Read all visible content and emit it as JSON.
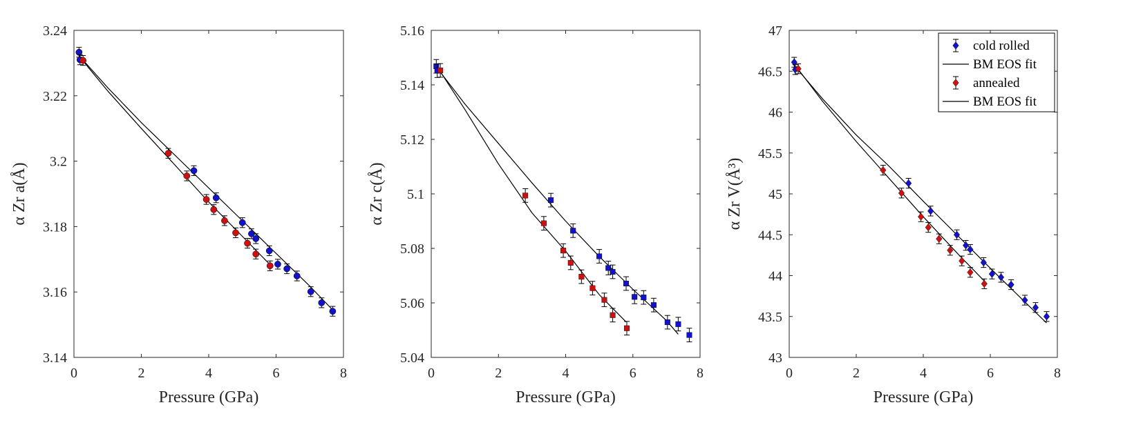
{
  "colors": {
    "cold_rolled": "#1212c8",
    "annealed": "#cc1111",
    "fit_line": "#000000",
    "axis": "#262626"
  },
  "legend": {
    "entries": [
      {
        "label": "cold rolled",
        "marker": "diamond",
        "color": "#1212c8",
        "kind": "marker"
      },
      {
        "label": "BM EOS fit",
        "kind": "line"
      },
      {
        "label": "annealed",
        "marker": "diamond",
        "color": "#cc1111",
        "kind": "marker"
      },
      {
        "label": "BM EOS fit",
        "kind": "line"
      }
    ]
  },
  "chart_data": [
    {
      "type": "scatter",
      "title": "",
      "xlabel": "Pressure (GPa)",
      "ylabel": "α Zr a(Å)",
      "xlim": [
        0,
        8
      ],
      "ylim": [
        3.14,
        3.24
      ],
      "xticks": [
        0,
        2,
        4,
        6,
        8
      ],
      "xtick_labels": [
        "0",
        "2",
        "4",
        "6",
        "8"
      ],
      "yticks": [
        3.14,
        3.16,
        3.18,
        3.2,
        3.22,
        3.24
      ],
      "ytick_labels": [
        "3.14",
        "3.16",
        "3.18",
        "3.2",
        "3.22",
        "3.24"
      ],
      "marker": "circle",
      "series": [
        {
          "name": "cold rolled",
          "x": [
            0.15,
            0.18,
            3.56,
            4.22,
            5.0,
            5.27,
            5.4,
            5.8,
            6.05,
            6.32,
            6.62,
            7.03,
            7.35,
            7.68
          ],
          "y": [
            3.2333,
            3.231,
            3.1971,
            3.1888,
            3.1812,
            3.1778,
            3.1763,
            3.1726,
            3.1685,
            3.1671,
            3.1649,
            3.1601,
            3.1567,
            3.1541
          ],
          "yerr": 0.0015
        },
        {
          "name": "annealed",
          "x": [
            0.27,
            2.8,
            3.35,
            3.93,
            4.15,
            4.47,
            4.8,
            5.15,
            5.4,
            5.82
          ],
          "y": [
            3.2308,
            3.2024,
            3.1955,
            3.1883,
            3.1852,
            3.1818,
            3.1781,
            3.1749,
            3.1716,
            3.168
          ],
          "yerr": 0.0015
        }
      ],
      "fits": [
        {
          "name": "BM EOS fit (cold rolled)",
          "x": [
            0.15,
            1,
            2,
            3,
            4,
            5,
            6,
            7,
            7.68
          ],
          "y": [
            3.2323,
            3.2225,
            3.2118,
            3.2018,
            3.1918,
            3.1818,
            3.1718,
            3.1618,
            3.1545
          ]
        },
        {
          "name": "BM EOS fit (annealed)",
          "x": [
            0.2,
            1,
            2,
            3,
            4,
            5,
            5.9
          ],
          "y": [
            3.2315,
            3.2215,
            3.21,
            3.1988,
            3.1875,
            3.177,
            3.1675
          ]
        }
      ]
    },
    {
      "type": "scatter",
      "title": "",
      "xlabel": "Pressure (GPa)",
      "ylabel": "α Zr c(Å)",
      "xlim": [
        0,
        8
      ],
      "ylim": [
        5.04,
        5.16
      ],
      "xticks": [
        0,
        2,
        4,
        6,
        8
      ],
      "xtick_labels": [
        "0",
        "2",
        "4",
        "6",
        "8"
      ],
      "yticks": [
        5.04,
        5.06,
        5.08,
        5.1,
        5.12,
        5.14,
        5.16
      ],
      "ytick_labels": [
        "5.04",
        "5.06",
        "5.08",
        "5.1",
        "5.12",
        "5.14",
        "5.16"
      ],
      "marker": "square",
      "series": [
        {
          "name": "cold rolled",
          "x": [
            0.15,
            0.18,
            3.56,
            4.22,
            5.0,
            5.27,
            5.4,
            5.8,
            6.05,
            6.32,
            6.62,
            7.03,
            7.35,
            7.68
          ],
          "y": [
            5.1468,
            5.1452,
            5.0977,
            5.0865,
            5.0771,
            5.0728,
            5.0714,
            5.0671,
            5.0622,
            5.062,
            5.0592,
            5.0529,
            5.0522,
            5.0482
          ],
          "yerr": 0.0025
        },
        {
          "name": "annealed",
          "x": [
            0.27,
            2.8,
            3.35,
            3.93,
            4.15,
            4.47,
            4.8,
            5.15,
            5.4,
            5.82
          ],
          "y": [
            5.1453,
            5.0994,
            5.0892,
            5.0792,
            5.0747,
            5.0696,
            5.0654,
            5.0611,
            5.0555,
            5.0507
          ],
          "yerr": 0.0025
        }
      ],
      "fits": [
        {
          "name": "BM EOS fit (cold rolled)",
          "x": [
            0.2,
            1,
            2,
            3,
            4,
            5,
            6,
            7,
            7.35
          ],
          "y": [
            5.1458,
            5.133,
            5.1185,
            5.104,
            5.09,
            5.077,
            5.065,
            5.0535,
            5.0485
          ]
        },
        {
          "name": "BM EOS fit (annealed)",
          "x": [
            0.2,
            1,
            2,
            3,
            4,
            5,
            5.8
          ],
          "y": [
            5.1462,
            5.131,
            5.111,
            5.093,
            5.079,
            5.063,
            5.053
          ]
        }
      ]
    },
    {
      "type": "scatter",
      "title": "",
      "xlabel": "Pressure (GPa)",
      "ylabel": "α Zr V(Å³)",
      "xlim": [
        0,
        8
      ],
      "ylim": [
        43,
        47
      ],
      "xticks": [
        0,
        2,
        4,
        6,
        8
      ],
      "xtick_labels": [
        "0",
        "2",
        "4",
        "6",
        "8"
      ],
      "yticks": [
        43,
        43.5,
        44,
        44.5,
        45,
        45.5,
        46,
        46.5,
        47
      ],
      "ytick_labels": [
        "43",
        "43.5",
        "44",
        "44.5",
        "45",
        "45.5",
        "46",
        "46.5",
        "47"
      ],
      "marker": "diamond",
      "series": [
        {
          "name": "cold rolled",
          "x": [
            0.15,
            0.18,
            3.56,
            4.22,
            5.0,
            5.27,
            5.4,
            5.8,
            6.05,
            6.32,
            6.62,
            7.03,
            7.35,
            7.68
          ],
          "y": [
            46.61,
            46.52,
            45.13,
            44.79,
            44.5,
            44.37,
            44.32,
            44.16,
            44.02,
            43.98,
            43.89,
            43.7,
            43.61,
            43.5
          ],
          "yerr": 0.06
        },
        {
          "name": "annealed",
          "x": [
            0.27,
            2.8,
            3.35,
            3.93,
            4.15,
            4.47,
            4.8,
            5.15,
            5.4,
            5.82
          ],
          "y": [
            46.53,
            45.29,
            45.01,
            44.72,
            44.59,
            44.45,
            44.31,
            44.18,
            44.04,
            43.9
          ],
          "yerr": 0.06
        }
      ],
      "fits": [
        {
          "name": "BM EOS fit (cold rolled)",
          "x": [
            0.15,
            1,
            2,
            3,
            4,
            5,
            6,
            7,
            7.68
          ],
          "y": [
            46.57,
            46.16,
            45.72,
            45.33,
            44.91,
            44.5,
            44.09,
            43.69,
            43.42
          ]
        },
        {
          "name": "BM EOS fit (annealed)",
          "x": [
            0.2,
            1,
            2,
            3,
            4,
            5,
            5.9
          ],
          "y": [
            46.56,
            46.13,
            45.64,
            45.18,
            44.72,
            44.28,
            43.9
          ]
        }
      ]
    }
  ]
}
